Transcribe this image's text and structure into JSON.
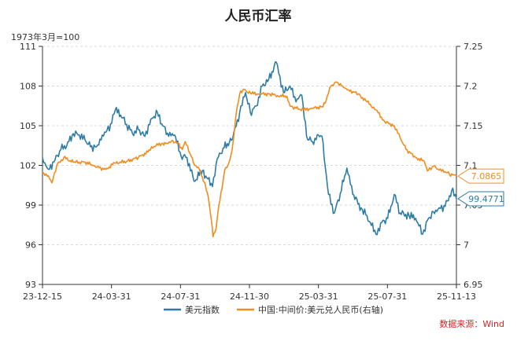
{
  "chart_data": {
    "type": "line",
    "title": "人民币汇率",
    "left_unit": "1973年3月=100",
    "source": "数据来源：Wind",
    "x_ticks": [
      "23-12-15",
      "24-03-31",
      "24-07-31",
      "24-11-30",
      "25-03-31",
      "25-07-31",
      "25-11-13"
    ],
    "x_range": [
      "2023-12-15",
      "2025-11-13"
    ],
    "y_left": {
      "min": 93,
      "max": 111,
      "ticks": [
        "93",
        "96",
        "99",
        "102",
        "105",
        "108",
        "111"
      ]
    },
    "y_right": {
      "min": 6.95,
      "max": 7.25,
      "ticks": [
        "6.95",
        "7",
        "7.05",
        "7.1",
        "7.15",
        "7.2",
        "7.25"
      ]
    },
    "grid": true,
    "legend_position": "bottom",
    "series": [
      {
        "name": "美元指数",
        "axis": "left",
        "color": "#2e7ca6",
        "last_label": "99.4771",
        "points": [
          [
            "2023-12-15",
            102.6
          ],
          [
            "2023-12-25",
            101.7
          ],
          [
            "2024-01-05",
            102.4
          ],
          [
            "2024-01-15",
            103.2
          ],
          [
            "2024-01-25",
            103.5
          ],
          [
            "2024-02-05",
            104.4
          ],
          [
            "2024-02-15",
            104.3
          ],
          [
            "2024-02-25",
            103.9
          ],
          [
            "2024-03-05",
            103.4
          ],
          [
            "2024-03-15",
            103.4
          ],
          [
            "2024-03-25",
            104.3
          ],
          [
            "2024-03-31",
            104.5
          ],
          [
            "2024-04-10",
            105.2
          ],
          [
            "2024-04-16",
            106.2
          ],
          [
            "2024-04-25",
            105.8
          ],
          [
            "2024-05-05",
            105.1
          ],
          [
            "2024-05-15",
            104.4
          ],
          [
            "2024-05-25",
            104.7
          ],
          [
            "2024-06-05",
            104.2
          ],
          [
            "2024-06-15",
            105.5
          ],
          [
            "2024-06-26",
            106.0
          ],
          [
            "2024-07-05",
            105.0
          ],
          [
            "2024-07-15",
            104.2
          ],
          [
            "2024-07-25",
            104.3
          ],
          [
            "2024-08-05",
            102.7
          ],
          [
            "2024-08-15",
            102.6
          ],
          [
            "2024-08-27",
            100.8
          ],
          [
            "2024-09-10",
            101.6
          ],
          [
            "2024-09-27",
            100.4
          ],
          [
            "2024-10-05",
            102.5
          ],
          [
            "2024-10-15",
            103.3
          ],
          [
            "2024-10-31",
            104.0
          ],
          [
            "2024-11-12",
            106.0
          ],
          [
            "2024-11-22",
            107.5
          ],
          [
            "2024-11-30",
            106.0
          ],
          [
            "2024-12-10",
            106.5
          ],
          [
            "2024-12-20",
            108.0
          ],
          [
            "2024-12-31",
            108.5
          ],
          [
            "2025-01-13",
            109.8
          ],
          [
            "2025-01-25",
            107.5
          ],
          [
            "2025-02-05",
            108.0
          ],
          [
            "2025-02-15",
            106.8
          ],
          [
            "2025-02-25",
            107.3
          ],
          [
            "2025-03-05",
            104.2
          ],
          [
            "2025-03-15",
            103.8
          ],
          [
            "2025-03-25",
            104.3
          ],
          [
            "2025-03-31",
            104.2
          ],
          [
            "2025-04-11",
            99.8
          ],
          [
            "2025-04-21",
            98.4
          ],
          [
            "2025-05-01",
            99.9
          ],
          [
            "2025-05-12",
            101.8
          ],
          [
            "2025-05-22",
            99.8
          ],
          [
            "2025-06-05",
            98.8
          ],
          [
            "2025-06-15",
            98.2
          ],
          [
            "2025-06-30",
            96.8
          ],
          [
            "2025-07-10",
            97.7
          ],
          [
            "2025-07-20",
            98.0
          ],
          [
            "2025-07-31",
            99.8
          ],
          [
            "2025-08-10",
            98.4
          ],
          [
            "2025-08-25",
            98.2
          ],
          [
            "2025-09-05",
            98.0
          ],
          [
            "2025-09-17",
            96.8
          ],
          [
            "2025-09-27",
            98.0
          ],
          [
            "2025-10-05",
            98.5
          ],
          [
            "2025-10-15",
            98.8
          ],
          [
            "2025-10-25",
            98.9
          ],
          [
            "2025-11-05",
            100.1
          ],
          [
            "2025-11-13",
            99.4771
          ]
        ]
      },
      {
        "name": "中国:中间价:美元兑人民币(右轴)",
        "axis": "right",
        "color": "#f28c1e",
        "last_label": "7.0865",
        "points": [
          [
            "2023-12-15",
            7.091
          ],
          [
            "2023-12-25",
            7.087
          ],
          [
            "2023-12-31",
            7.078
          ],
          [
            "2024-01-08",
            7.1
          ],
          [
            "2024-01-20",
            7.11
          ],
          [
            "2024-02-05",
            7.104
          ],
          [
            "2024-02-15",
            7.104
          ],
          [
            "2024-02-25",
            7.104
          ],
          [
            "2024-03-10",
            7.1
          ],
          [
            "2024-03-20",
            7.097
          ],
          [
            "2024-03-31",
            7.095
          ],
          [
            "2024-04-15",
            7.103
          ],
          [
            "2024-05-05",
            7.105
          ],
          [
            "2024-05-25",
            7.11
          ],
          [
            "2024-06-10",
            7.117
          ],
          [
            "2024-06-20",
            7.124
          ],
          [
            "2024-07-05",
            7.128
          ],
          [
            "2024-07-12",
            7.128
          ],
          [
            "2024-07-20",
            7.131
          ],
          [
            "2024-07-31",
            7.128
          ],
          [
            "2024-08-07",
            7.12
          ],
          [
            "2024-08-12",
            7.13
          ],
          [
            "2024-08-20",
            7.115
          ],
          [
            "2024-08-28",
            7.1
          ],
          [
            "2024-09-05",
            7.095
          ],
          [
            "2024-09-10",
            7.085
          ],
          [
            "2024-09-15",
            7.076
          ],
          [
            "2024-09-20",
            7.06
          ],
          [
            "2024-09-25",
            7.032
          ],
          [
            "2024-09-28",
            7.01
          ],
          [
            "2024-10-03",
            7.02
          ],
          [
            "2024-10-08",
            7.05
          ],
          [
            "2024-10-13",
            7.07
          ],
          [
            "2024-10-18",
            7.095
          ],
          [
            "2024-10-23",
            7.1
          ],
          [
            "2024-10-28",
            7.112
          ],
          [
            "2024-11-01",
            7.13
          ],
          [
            "2024-11-06",
            7.165
          ],
          [
            "2024-11-12",
            7.19
          ],
          [
            "2024-11-19",
            7.196
          ],
          [
            "2024-11-25",
            7.192
          ],
          [
            "2024-11-30",
            7.191
          ],
          [
            "2024-12-15",
            7.19
          ],
          [
            "2024-12-31",
            7.19
          ],
          [
            "2025-01-15",
            7.188
          ],
          [
            "2025-01-31",
            7.187
          ],
          [
            "2025-02-05",
            7.175
          ],
          [
            "2025-02-15",
            7.172
          ],
          [
            "2025-02-28",
            7.17
          ],
          [
            "2025-03-15",
            7.172
          ],
          [
            "2025-03-31",
            7.174
          ],
          [
            "2025-04-05",
            7.178
          ],
          [
            "2025-04-15",
            7.2
          ],
          [
            "2025-04-25",
            7.205
          ],
          [
            "2025-05-05",
            7.2
          ],
          [
            "2025-05-15",
            7.195
          ],
          [
            "2025-05-31",
            7.19
          ],
          [
            "2025-06-15",
            7.18
          ],
          [
            "2025-06-30",
            7.17
          ],
          [
            "2025-07-15",
            7.155
          ],
          [
            "2025-07-31",
            7.15
          ],
          [
            "2025-08-10",
            7.135
          ],
          [
            "2025-08-20",
            7.12
          ],
          [
            "2025-09-05",
            7.11
          ],
          [
            "2025-09-20",
            7.105
          ],
          [
            "2025-09-25",
            7.093
          ],
          [
            "2025-10-05",
            7.099
          ],
          [
            "2025-10-15",
            7.094
          ],
          [
            "2025-10-25",
            7.092
          ],
          [
            "2025-11-01",
            7.089
          ],
          [
            "2025-11-13",
            7.0865
          ]
        ]
      }
    ]
  }
}
